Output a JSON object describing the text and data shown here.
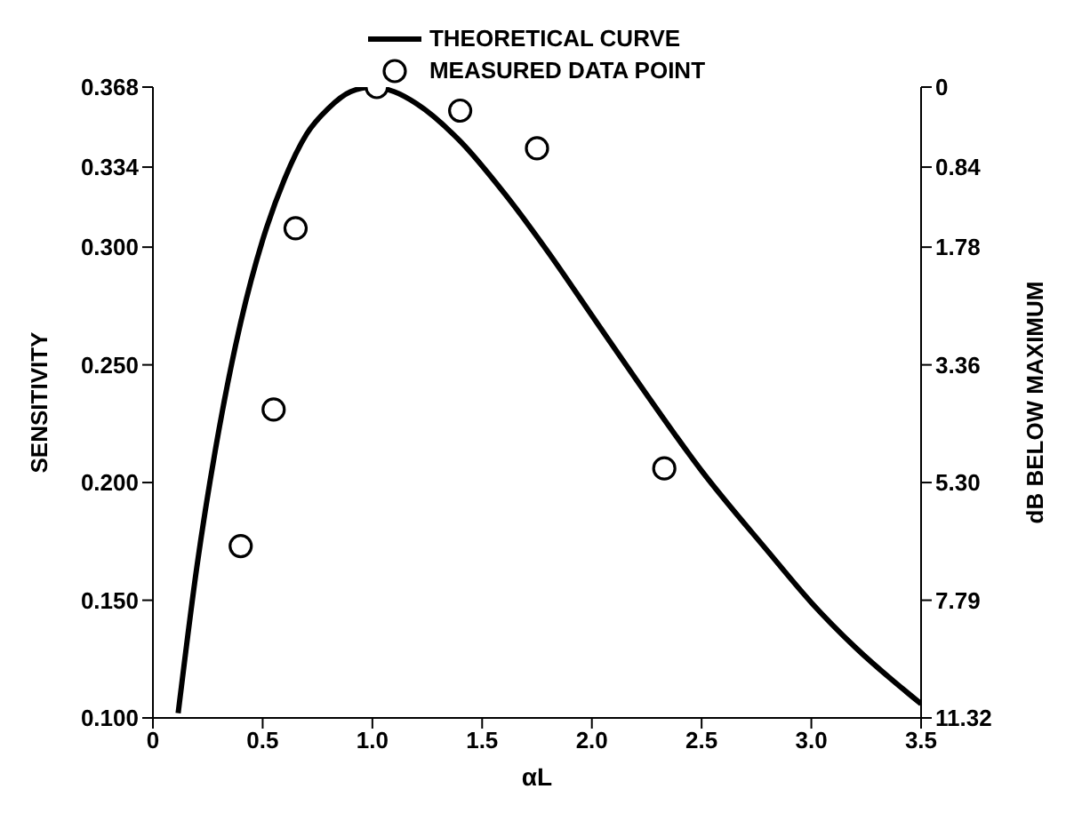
{
  "chart_data": {
    "type": "line",
    "xlabel": "αL",
    "ylabel": "SENSITIVITY",
    "y2label": "dB BELOW MAXIMUM",
    "legend": "top",
    "grid": false,
    "xlim": [
      0,
      3.5
    ],
    "xticks": [
      0,
      0.5,
      {
        "value": 1,
        "label": "1.0"
      },
      1.5,
      {
        "value": 2,
        "label": "2.0"
      },
      2.5,
      {
        "value": 3,
        "label": "3.0"
      },
      3.5
    ],
    "ylim": [
      0.1,
      0.368
    ],
    "yticks": [
      {
        "value": 0.1,
        "label": "0.100"
      },
      {
        "value": 0.15,
        "label": "0.150"
      },
      {
        "value": 0.2,
        "label": "0.200"
      },
      {
        "value": 0.25,
        "label": "0.250"
      },
      {
        "value": 0.3,
        "label": "0.300"
      },
      0.334,
      0.368
    ],
    "annotations": [
      "11.32",
      "7.79",
      "5.30",
      "3.36",
      "1.78",
      "0.84",
      "0"
    ],
    "series": [
      {
        "name": "THEORETICAL CURVE",
        "color": "#000000",
        "marker": "none",
        "x": [
          0.115,
          0.2,
          0.3,
          0.4,
          0.5,
          0.6,
          0.7,
          0.8,
          0.9,
          1.0,
          1.1,
          1.2,
          1.4,
          1.6,
          1.8,
          2.0,
          2.2,
          2.5,
          2.8,
          3.0,
          3.2,
          3.5
        ],
        "values": [
          0.102,
          0.164,
          0.222,
          0.268,
          0.303,
          0.329,
          0.348,
          0.359,
          0.366,
          0.368,
          0.366,
          0.361,
          0.345,
          0.323,
          0.298,
          0.271,
          0.244,
          0.205,
          0.171,
          0.149,
          0.13,
          0.106
        ]
      },
      {
        "name": "MEASURED DATA POINT",
        "type": "scatter",
        "color": "#000000",
        "marker": "circle",
        "x": [
          0.4,
          0.55,
          0.65,
          1.02,
          1.4,
          1.75,
          2.33
        ],
        "values": [
          0.173,
          0.231,
          0.308,
          0.368,
          0.358,
          0.342,
          0.206
        ]
      }
    ]
  }
}
